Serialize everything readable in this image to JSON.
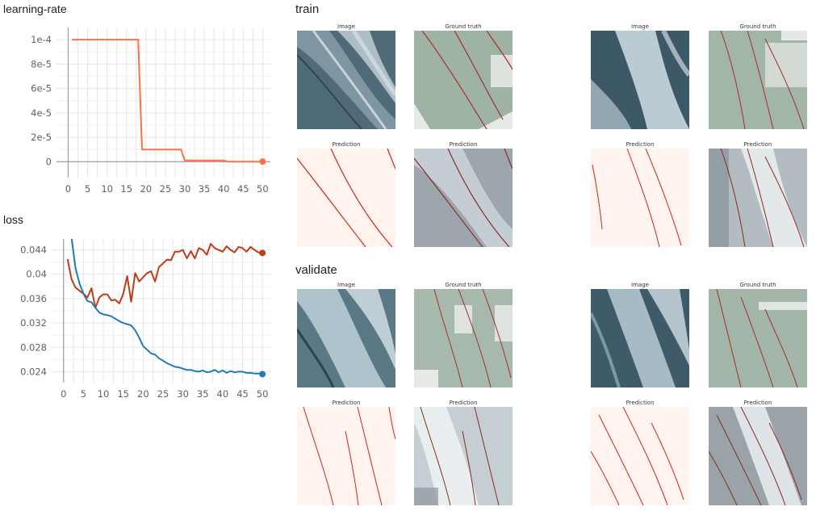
{
  "charts": {
    "lr_title": "learning-rate",
    "loss_title": "loss"
  },
  "sections": {
    "train": "train",
    "validate": "validate"
  },
  "chart_data": [
    {
      "type": "line",
      "title": "learning-rate",
      "x_ticks": [
        "0",
        "5",
        "10",
        "15",
        "20",
        "25",
        "30",
        "35",
        "40",
        "45",
        "50"
      ],
      "y_ticks": [
        "1e-4",
        "8e-5",
        "6e-5",
        "4e-5",
        "2e-5",
        "0"
      ],
      "xlim": [
        -3,
        52
      ],
      "ylim": [
        -1.3e-05,
        0.00011
      ],
      "grid": true,
      "series": [
        {
          "color": "#ff7043",
          "x": [
            1,
            18,
            19,
            29,
            30,
            40,
            41,
            50
          ],
          "y": [
            0.0001,
            0.0001,
            1e-05,
            1e-05,
            1e-06,
            1e-06,
            1e-07,
            1e-07
          ]
        }
      ]
    },
    {
      "type": "line",
      "title": "loss",
      "x_ticks": [
        "0",
        "5",
        "10",
        "15",
        "20",
        "25",
        "30",
        "35",
        "40",
        "45",
        "50"
      ],
      "y_ticks": [
        "0.044",
        "0.04",
        "0.036",
        "0.032",
        "0.028",
        "0.024"
      ],
      "y_tick_values": [
        0.044,
        0.04,
        0.036,
        0.032,
        0.028,
        0.024
      ],
      "xlim": [
        -3,
        52
      ],
      "ylim": [
        0.0222,
        0.0458
      ],
      "grid": true,
      "series": [
        {
          "color": "#c13b1b",
          "x": [
            1,
            2,
            3,
            4,
            5,
            6,
            7,
            8,
            9,
            10,
            11,
            12,
            13,
            14,
            15,
            16,
            17,
            18,
            19,
            20,
            21,
            22,
            23,
            24,
            25,
            26,
            27,
            28,
            29,
            30,
            31,
            32,
            33,
            34,
            35,
            36,
            37,
            38,
            39,
            40,
            41,
            42,
            43,
            44,
            45,
            46,
            47,
            48,
            49,
            50
          ],
          "y": [
            0.0425,
            0.0392,
            0.0378,
            0.0373,
            0.0368,
            0.0362,
            0.0377,
            0.0345,
            0.0362,
            0.0367,
            0.0367,
            0.0357,
            0.0358,
            0.0352,
            0.0368,
            0.0397,
            0.0355,
            0.0402,
            0.0388,
            0.0395,
            0.0402,
            0.0405,
            0.0388,
            0.0412,
            0.0418,
            0.0424,
            0.0423,
            0.0437,
            0.0437,
            0.044,
            0.0426,
            0.0438,
            0.0426,
            0.0443,
            0.044,
            0.0432,
            0.045,
            0.0443,
            0.044,
            0.0437,
            0.0446,
            0.044,
            0.0436,
            0.0445,
            0.0443,
            0.0437,
            0.0445,
            0.044,
            0.0436,
            0.0435
          ]
        },
        {
          "color": "#1f7ab8",
          "x": [
            2,
            3,
            4,
            5,
            6,
            7,
            8,
            9,
            10,
            11,
            12,
            13,
            14,
            15,
            16,
            17,
            18,
            19,
            20,
            21,
            22,
            23,
            24,
            25,
            26,
            27,
            28,
            29,
            30,
            31,
            32,
            33,
            34,
            35,
            36,
            37,
            38,
            39,
            40,
            41,
            42,
            43,
            44,
            45,
            46,
            47,
            48,
            49,
            50
          ],
          "y": [
            0.046,
            0.041,
            0.0385,
            0.0368,
            0.0356,
            0.0354,
            0.0345,
            0.0337,
            0.0334,
            0.0333,
            0.0331,
            0.0327,
            0.0323,
            0.032,
            0.0318,
            0.0316,
            0.0308,
            0.0296,
            0.0282,
            0.0276,
            0.027,
            0.0268,
            0.0262,
            0.0258,
            0.0254,
            0.0251,
            0.0248,
            0.0247,
            0.0245,
            0.0243,
            0.0243,
            0.0241,
            0.024,
            0.0242,
            0.0239,
            0.024,
            0.0243,
            0.0239,
            0.0242,
            0.0238,
            0.0241,
            0.0239,
            0.024,
            0.024,
            0.0238,
            0.0238,
            0.0237,
            0.0237,
            0.0236
          ]
        }
      ]
    }
  ],
  "tiles": {
    "labels": {
      "image": "Image",
      "ground_truth": "Ground truth",
      "prediction": "Prediction"
    },
    "corners": {
      "train_left": {
        "top_left": "3010",
        "bottom_left": "0000",
        "bottom_x0": "3429",
        "bottom_x1": "3674"
      },
      "train_right": {
        "top_left": "3044",
        "bottom_left": "0000",
        "bottom_x0": "3607",
        "bottom_x1": "3852"
      },
      "val_left": {
        "top_left": "3020",
        "bottom_left": "0000",
        "bottom_x0": "3449",
        "bottom_x1": "3692"
      },
      "val_right": {
        "top_left": "3040",
        "bottom_left": "0000",
        "bottom_x0": "3492",
        "bottom_x1": "3737"
      }
    }
  }
}
